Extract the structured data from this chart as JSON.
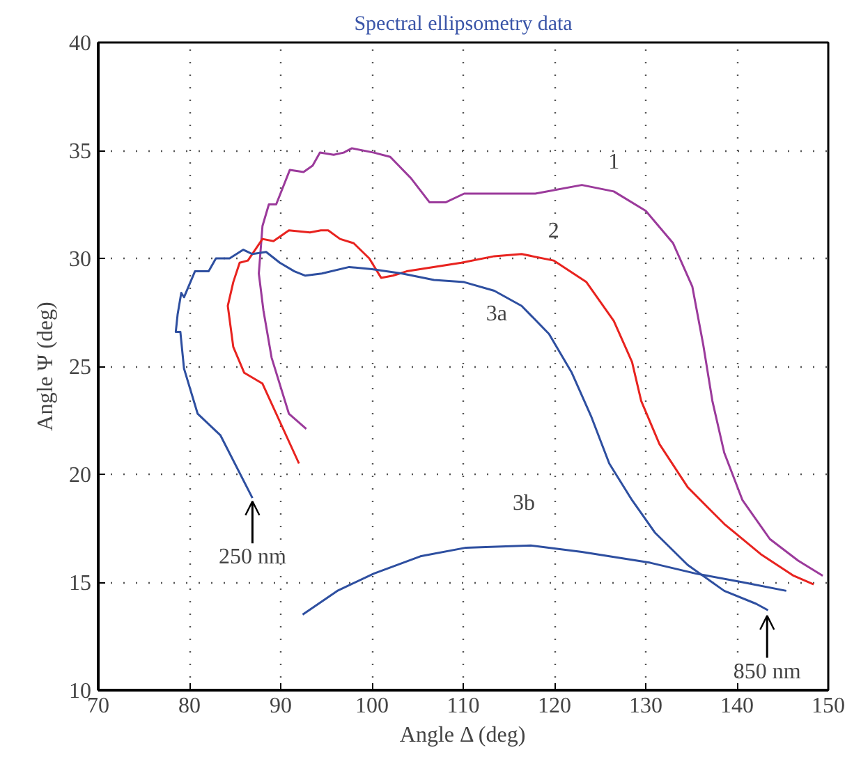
{
  "chart_data": {
    "type": "line",
    "title": "Spectral ellipsometry data",
    "xlabel": "Angle Δ (deg)",
    "ylabel": "Angle Ψ (deg)",
    "xlim": [
      70,
      150
    ],
    "ylim": [
      10,
      40
    ],
    "xticks": [
      70,
      80,
      90,
      100,
      110,
      120,
      130,
      140,
      150
    ],
    "yticks": [
      10,
      15,
      20,
      25,
      30,
      35,
      40
    ],
    "grid": true,
    "legend": false,
    "line_style": "solid",
    "marker": "none",
    "series": [
      {
        "name": "1",
        "color": "#9b3a9b",
        "x": [
          92.8,
          90.9,
          89.0,
          88.1,
          87.6,
          88.0,
          88.7,
          89.5,
          91.0,
          92.5,
          93.5,
          94.3,
          95.8,
          96.9,
          97.8,
          100.2,
          102.0,
          104.3,
          106.3,
          108.1,
          110.1,
          113.4,
          117.9,
          123.0,
          126.5,
          130.0,
          133.0,
          135.1,
          136.3,
          137.3,
          138.6,
          140.6,
          143.6,
          146.7,
          149.4
        ],
        "values": [
          22.1,
          22.8,
          25.4,
          27.6,
          29.3,
          31.5,
          32.5,
          32.5,
          34.1,
          34.0,
          34.3,
          34.9,
          34.8,
          34.9,
          35.1,
          34.9,
          34.7,
          33.7,
          32.6,
          32.6,
          33.0,
          33.0,
          33.0,
          33.4,
          33.1,
          32.2,
          30.7,
          28.7,
          26.0,
          23.4,
          21.0,
          18.8,
          17.0,
          16.0,
          15.3
        ]
      },
      {
        "name": "2",
        "color": "#e8231f",
        "x": [
          92.0,
          88.0,
          86.0,
          84.8,
          84.2,
          84.8,
          85.5,
          86.4,
          88.0,
          89.2,
          90.9,
          93.2,
          94.4,
          95.2,
          96.5,
          98.0,
          99.7,
          101.0,
          102.3,
          103.8,
          109.8,
          113.4,
          116.4,
          119.9,
          123.5,
          126.5,
          128.5,
          129.5,
          131.5,
          134.6,
          138.6,
          142.6,
          146.2,
          148.4
        ],
        "values": [
          20.5,
          24.2,
          24.7,
          25.9,
          27.8,
          28.9,
          29.8,
          29.9,
          30.9,
          30.8,
          31.3,
          31.2,
          31.3,
          31.3,
          30.9,
          30.7,
          30.0,
          29.1,
          29.2,
          29.4,
          29.8,
          30.1,
          30.2,
          29.9,
          28.9,
          27.1,
          25.2,
          23.4,
          21.4,
          19.4,
          17.7,
          16.3,
          15.3,
          14.9
        ]
      },
      {
        "name": "3a",
        "color": "#2e4fa0",
        "x": [
          86.9,
          83.4,
          80.9,
          79.4,
          79.0,
          78.5,
          78.7,
          79.1,
          79.4,
          80.6,
          82.1,
          82.9,
          84.4,
          85.9,
          86.9,
          88.4,
          89.9,
          91.5,
          92.7,
          94.5,
          97.5,
          100.0,
          103.3,
          106.8,
          110.1,
          113.4,
          116.4,
          119.4,
          121.9,
          124.0,
          126.0,
          128.5,
          131.0,
          134.6,
          138.6,
          142.1,
          143.4
        ],
        "values": [
          18.9,
          21.8,
          22.8,
          24.9,
          26.6,
          26.6,
          27.4,
          28.4,
          28.2,
          29.4,
          29.4,
          30.0,
          30.0,
          30.4,
          30.2,
          30.3,
          29.8,
          29.4,
          29.2,
          29.3,
          29.6,
          29.5,
          29.3,
          29.0,
          28.9,
          28.5,
          27.8,
          26.5,
          24.7,
          22.7,
          20.5,
          18.8,
          17.3,
          15.8,
          14.6,
          14.0,
          13.7
        ]
      },
      {
        "name": "3b",
        "color": "#2e4fa0",
        "x": [
          92.4,
          96.2,
          100.2,
          105.3,
          110.3,
          117.4,
          123.0,
          130.5,
          135.5,
          140.6,
          145.4
        ],
        "values": [
          13.5,
          14.6,
          15.4,
          16.2,
          16.6,
          16.7,
          16.4,
          15.9,
          15.4,
          15.0,
          14.6
        ]
      }
    ],
    "annotations": [
      {
        "text": "250 nm",
        "x": 86.9,
        "y": 18.9
      },
      {
        "text": "850 nm",
        "x": 143.3,
        "y": 13.6
      }
    ]
  }
}
